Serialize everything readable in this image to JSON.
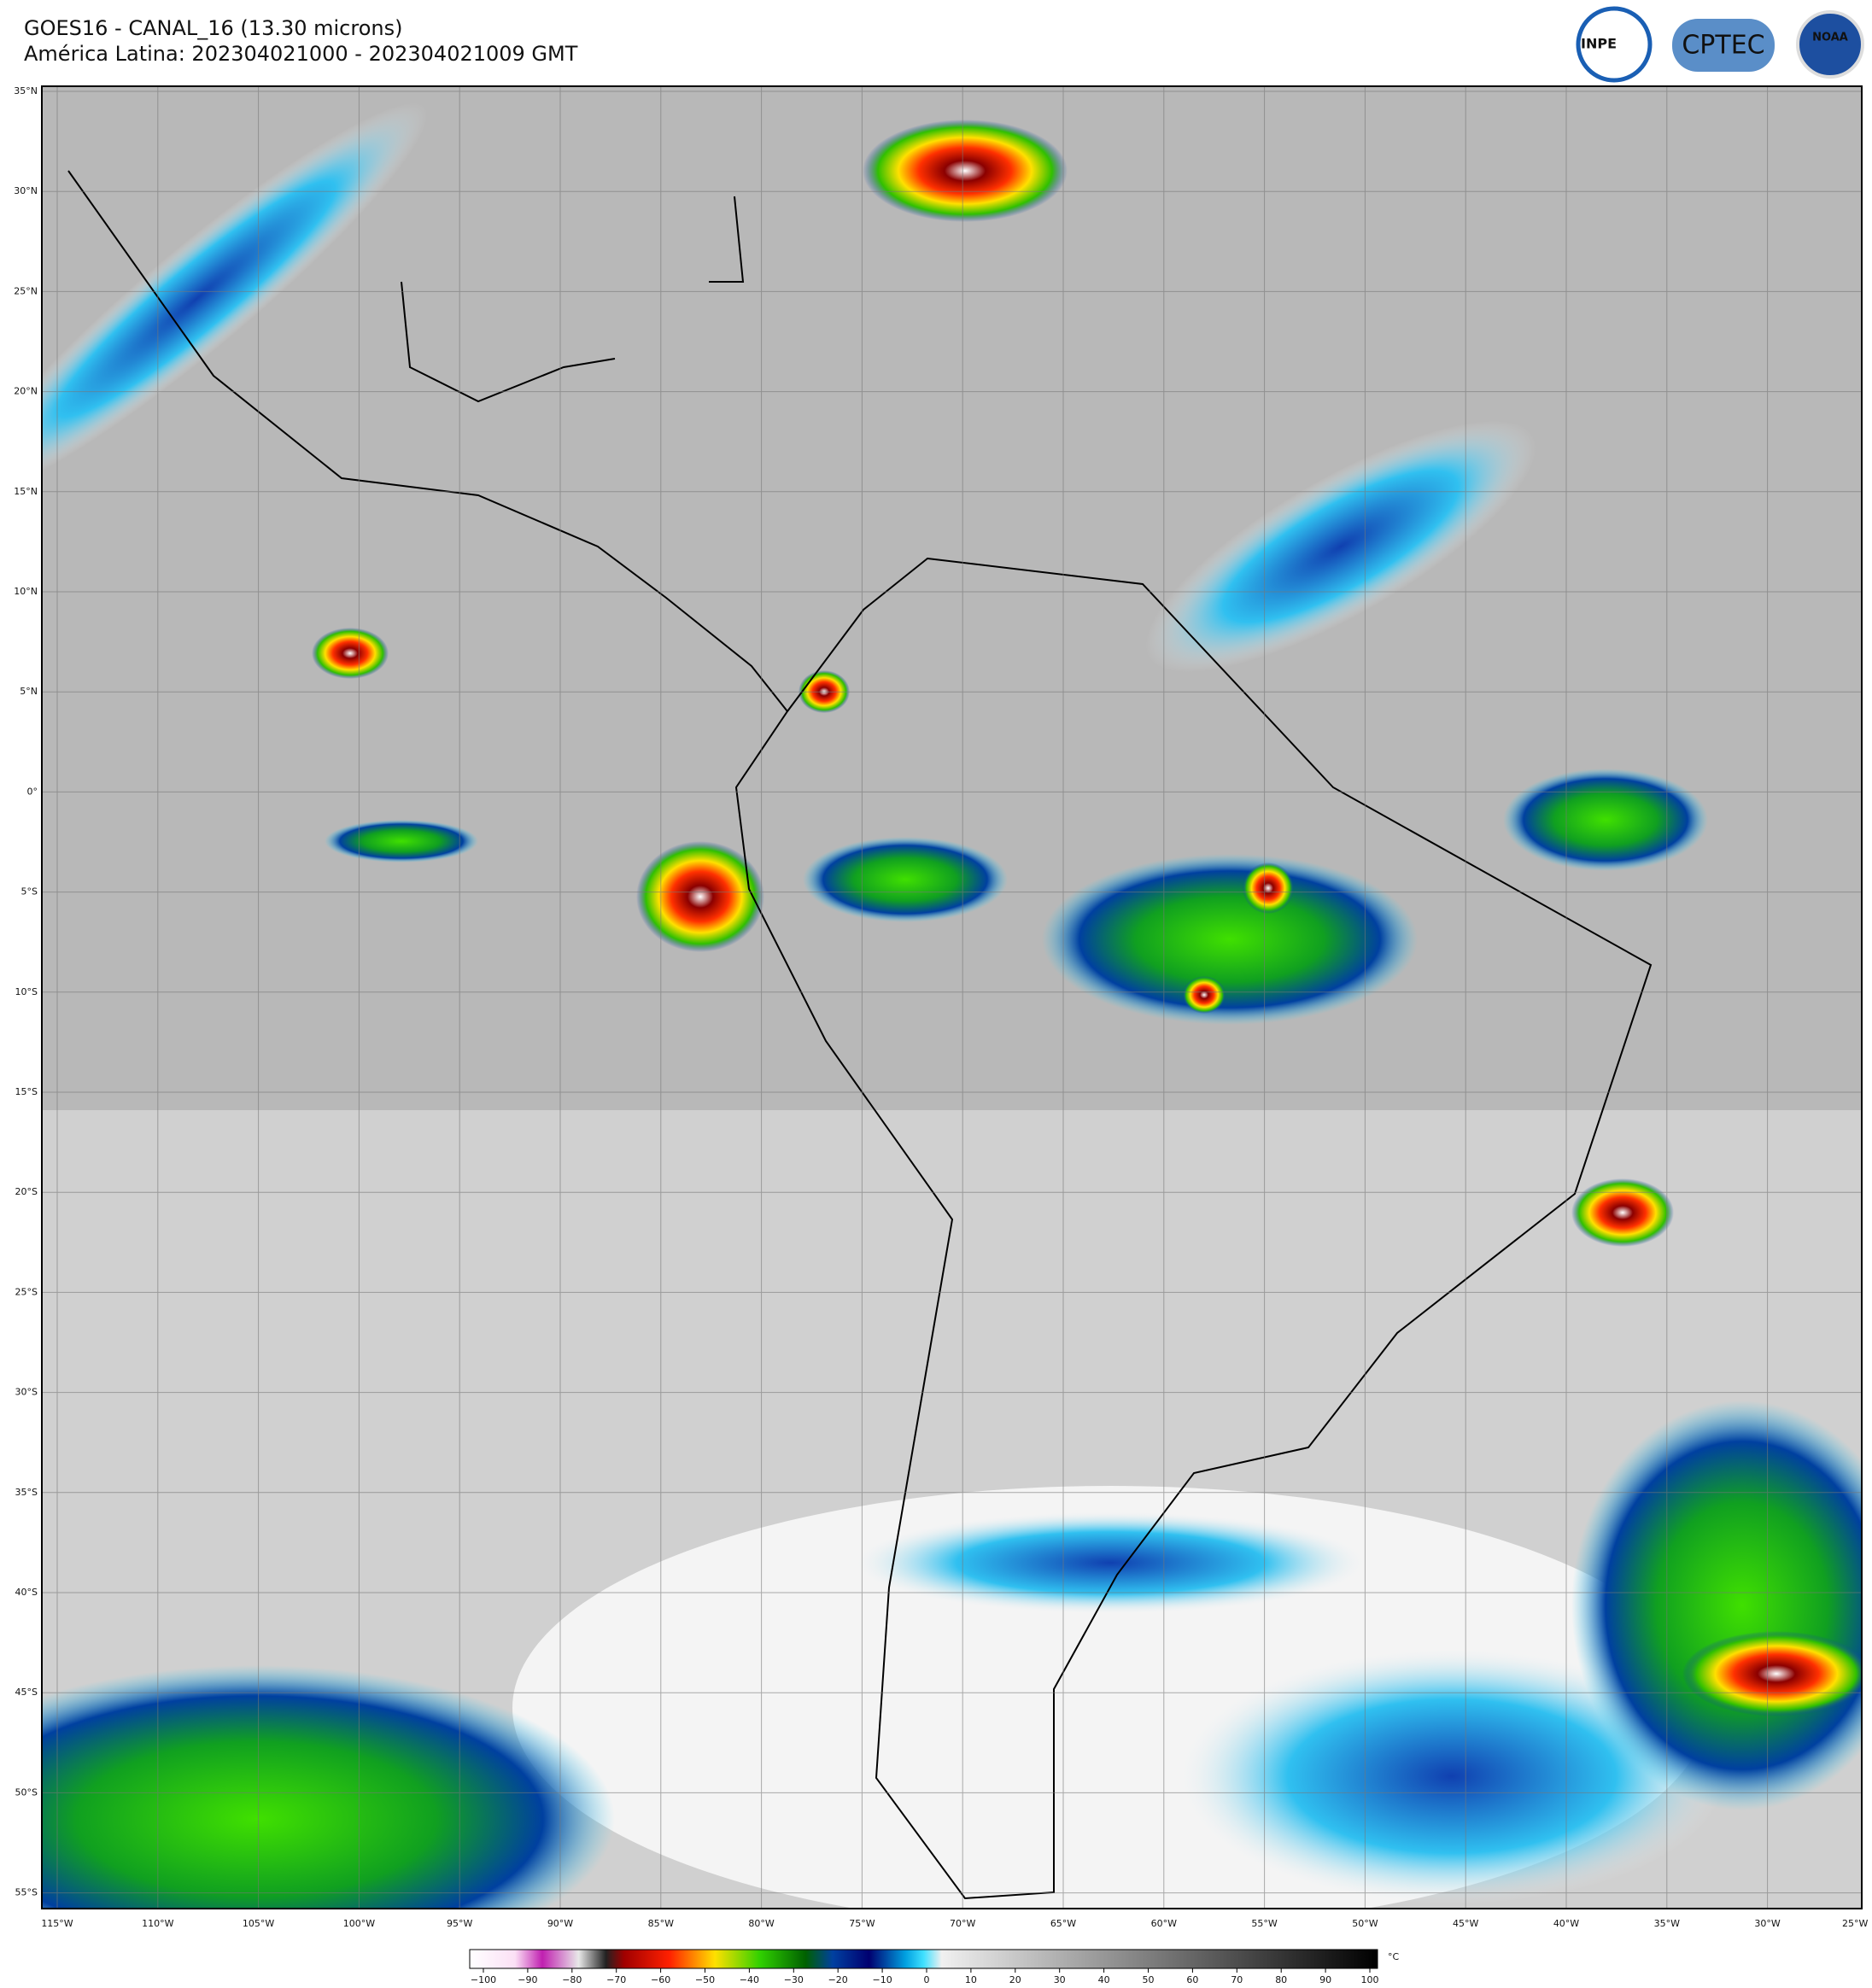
{
  "header": {
    "title": "GOES16 - CANAL_16 (13.30 microns)",
    "subtitle": "América Latina: 202304021000 - 202304021009 GMT"
  },
  "logos": [
    "INPE",
    "CPTEC",
    "NOAA"
  ],
  "map": {
    "lat_labels": [
      "35°N",
      "30°N",
      "25°N",
      "20°N",
      "15°N",
      "10°N",
      "5°N",
      "0°",
      "5°S",
      "10°S",
      "15°S",
      "20°S",
      "25°S",
      "30°S",
      "35°S",
      "40°S",
      "45°S",
      "50°S",
      "55°S"
    ],
    "lon_labels": [
      "115°W",
      "110°W",
      "105°W",
      "100°W",
      "95°W",
      "90°W",
      "85°W",
      "80°W",
      "75°W",
      "70°W",
      "65°W",
      "60°W",
      "55°W",
      "50°W",
      "45°W",
      "40°W",
      "35°W",
      "30°W",
      "25°W"
    ]
  },
  "colorbar": {
    "unit": "°C",
    "labels": [
      "−100",
      "−90",
      "−80",
      "−70",
      "−60",
      "−50",
      "−40",
      "−30",
      "−20",
      "−10",
      "0",
      "10",
      "20",
      "30",
      "40",
      "50",
      "60",
      "70",
      "80",
      "90",
      "100"
    ]
  }
}
